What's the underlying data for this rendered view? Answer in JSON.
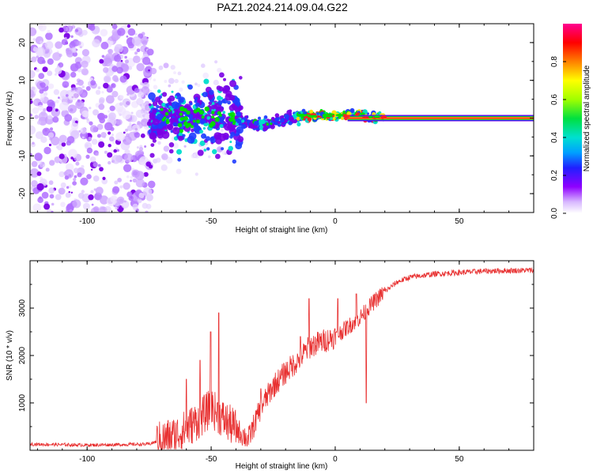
{
  "figure": {
    "title": "PAZ1.2024.214.09.04.G22"
  },
  "chart_data": [
    {
      "type": "heatmap",
      "xlabel": "Height of straight line (km)",
      "ylabel": "Frequency (Hz)",
      "xlim": [
        -123,
        80
      ],
      "ylim": [
        -25,
        25
      ],
      "xticks": [
        -100,
        -50,
        0,
        50
      ],
      "xtick_labels": [
        "-100",
        "-50",
        "0",
        "50"
      ],
      "yticks": [
        -20,
        -10,
        0,
        10,
        20
      ],
      "ytick_labels": [
        "-20",
        "-10",
        "0",
        "10",
        "20"
      ],
      "colorbar": {
        "label": "Normalized spectral amplitude",
        "range": [
          0,
          1
        ],
        "ticks": [
          0.0,
          0.2,
          0.4,
          0.6,
          0.8
        ],
        "tick_labels": [
          "0.0",
          "0.2",
          "0.4",
          "0.6",
          "0.8"
        ]
      },
      "features": {
        "noise_region_km": [
          -123,
          -74
        ],
        "signal_band_start_km": -40,
        "stable_line_km": [
          20,
          80
        ],
        "stable_line_freq_hz": 0
      },
      "colors": {
        "purple": "#7a00e6",
        "blue": "#1f3cff",
        "cyan": "#00ddcc",
        "green": "#00e000",
        "yellow": "#ffe400",
        "red": "#ff2020",
        "magenta": "#ff00aa"
      }
    },
    {
      "type": "line",
      "xlabel": "Height of straight line (km)",
      "ylabel": "SNR (10 * v/v)",
      "xlim": [
        -123,
        80
      ],
      "ylim": [
        0,
        4000
      ],
      "xticks": [
        -100,
        -50,
        0,
        50
      ],
      "xtick_labels": [
        "-100",
        "-50",
        "0",
        "50"
      ],
      "yticks": [
        1000,
        2000,
        3000
      ],
      "ytick_labels": [
        "1000",
        "2000",
        "3000"
      ],
      "color": "#e83030",
      "envelope": {
        "x": [
          -123,
          -100,
          -75,
          -70,
          -65,
          -60,
          -55,
          -50,
          -45,
          -40,
          -35,
          -30,
          -25,
          -20,
          -15,
          -10,
          -5,
          0,
          5,
          10,
          15,
          20,
          25,
          30,
          40,
          50,
          60,
          70,
          80
        ],
        "y": [
          130,
          110,
          130,
          220,
          300,
          450,
          650,
          900,
          650,
          450,
          230,
          900,
          1350,
          1650,
          1900,
          2200,
          2300,
          2400,
          2600,
          2800,
          3100,
          3350,
          3550,
          3650,
          3720,
          3750,
          3780,
          3790,
          3800
        ]
      },
      "spikes": [
        {
          "x": -50.2,
          "y": 2500
        },
        {
          "x": -47.0,
          "y": 2900
        },
        {
          "x": -54.5,
          "y": 1900
        },
        {
          "x": -10.5,
          "y": 3200
        },
        {
          "x": -14.0,
          "y": 2400
        },
        {
          "x": 1.0,
          "y": 3200
        },
        {
          "x": 8.5,
          "y": 3300
        },
        {
          "x": 12.5,
          "y": 1000
        },
        {
          "x": -30.0,
          "y": 1300
        },
        {
          "x": -60.0,
          "y": 1500
        },
        {
          "x": -22.0,
          "y": 1500
        }
      ]
    }
  ]
}
